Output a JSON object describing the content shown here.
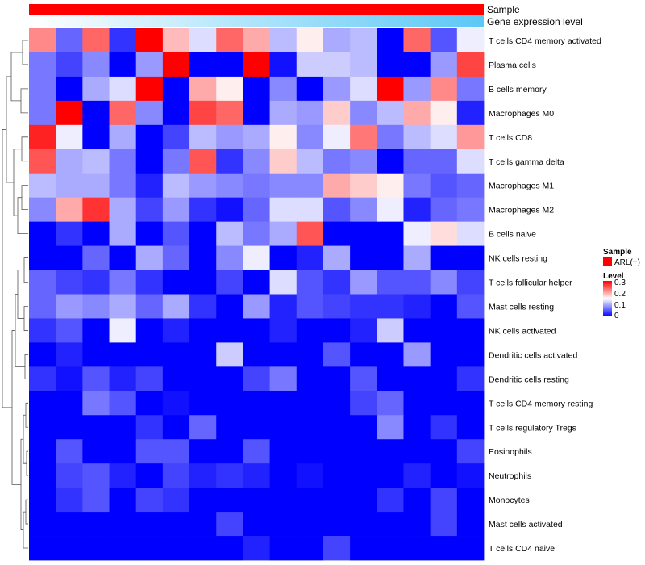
{
  "chart_data": {
    "type": "heatmap",
    "annotation_tracks": [
      {
        "name": "Sample",
        "color": "#ff0000"
      },
      {
        "name": "Gene expression level",
        "gradient": [
          "#ffffff",
          "#5bc8f5"
        ]
      }
    ],
    "rows": [
      "T cells CD4 memory activated",
      "Plasma cells",
      "B cells memory",
      "Macrophages M0",
      "T cells CD8",
      "T cells gamma delta",
      "Macrophages M1",
      "Macrophages M2",
      "B cells naive",
      "NK cells resting",
      "T cells follicular helper",
      "Mast cells resting",
      "NK cells activated",
      "Dendritic cells activated",
      "Dendritic cells resting",
      "T cells CD4 memory resting",
      "T cells regulatory  Tregs",
      "Eosinophils",
      "Neutrophils",
      "Monocytes",
      "Mast cells activated",
      "T cells CD4 naive"
    ],
    "n_columns": 17,
    "values": [
      [
        0.22,
        0.06,
        0.24,
        0.03,
        0.3,
        0.19,
        0.13,
        0.24,
        0.2,
        0.11,
        0.16,
        0.1,
        0.11,
        0.0,
        0.24,
        0.05,
        0.14
      ],
      [
        0.07,
        0.04,
        0.08,
        0.0,
        0.09,
        0.3,
        0.0,
        0.0,
        0.3,
        0.01,
        0.12,
        0.12,
        0.11,
        0.0,
        0.0,
        0.09,
        0.26
      ],
      [
        0.07,
        0.0,
        0.1,
        0.13,
        0.3,
        0.0,
        0.2,
        0.16,
        0.0,
        0.08,
        0.0,
        0.09,
        0.13,
        0.3,
        0.09,
        0.22,
        0.07
      ],
      [
        0.07,
        0.3,
        0.0,
        0.24,
        0.08,
        0.0,
        0.26,
        0.24,
        0.0,
        0.1,
        0.09,
        0.18,
        0.08,
        0.11,
        0.2,
        0.16,
        0.02
      ],
      [
        0.28,
        0.14,
        0.0,
        0.1,
        0.0,
        0.04,
        0.11,
        0.09,
        0.1,
        0.16,
        0.08,
        0.14,
        0.23,
        0.07,
        0.11,
        0.13,
        0.21
      ],
      [
        0.25,
        0.1,
        0.11,
        0.07,
        0.0,
        0.07,
        0.25,
        0.03,
        0.08,
        0.18,
        0.11,
        0.07,
        0.08,
        0.0,
        0.06,
        0.06,
        0.13
      ],
      [
        0.11,
        0.1,
        0.1,
        0.07,
        0.02,
        0.11,
        0.09,
        0.08,
        0.07,
        0.08,
        0.08,
        0.2,
        0.18,
        0.16,
        0.07,
        0.05,
        0.06
      ],
      [
        0.08,
        0.2,
        0.27,
        0.1,
        0.04,
        0.09,
        0.03,
        0.01,
        0.06,
        0.13,
        0.13,
        0.05,
        0.08,
        0.14,
        0.02,
        0.06,
        0.07
      ],
      [
        0.0,
        0.03,
        0.0,
        0.1,
        0.0,
        0.05,
        0.0,
        0.11,
        0.07,
        0.1,
        0.25,
        0.0,
        0.0,
        0.0,
        0.14,
        0.17,
        0.13
      ],
      [
        0.0,
        0.0,
        0.06,
        0.0,
        0.1,
        0.06,
        0.0,
        0.08,
        0.14,
        0.0,
        0.02,
        0.1,
        0.0,
        0.0,
        0.1,
        0.0,
        0.0
      ],
      [
        0.06,
        0.04,
        0.03,
        0.07,
        0.03,
        0.0,
        0.0,
        0.04,
        0.0,
        0.13,
        0.05,
        0.03,
        0.09,
        0.05,
        0.05,
        0.08,
        0.04
      ],
      [
        0.06,
        0.09,
        0.08,
        0.1,
        0.06,
        0.1,
        0.03,
        0.0,
        0.09,
        0.02,
        0.05,
        0.04,
        0.03,
        0.03,
        0.02,
        0.0,
        0.05
      ],
      [
        0.03,
        0.05,
        0.0,
        0.14,
        0.0,
        0.02,
        0.0,
        0.0,
        0.0,
        0.02,
        0.0,
        0.0,
        0.02,
        0.12,
        0.0,
        0.0,
        0.0
      ],
      [
        0.0,
        0.02,
        0.0,
        0.0,
        0.0,
        0.0,
        0.0,
        0.12,
        0.0,
        0.0,
        0.0,
        0.05,
        0.0,
        0.0,
        0.09,
        0.0,
        0.0
      ],
      [
        0.03,
        0.01,
        0.05,
        0.02,
        0.04,
        0.0,
        0.0,
        0.0,
        0.04,
        0.07,
        0.0,
        0.0,
        0.05,
        0.0,
        0.0,
        0.0,
        0.03
      ],
      [
        0.0,
        0.0,
        0.07,
        0.05,
        0.0,
        0.01,
        0.0,
        0.0,
        0.0,
        0.0,
        0.0,
        0.0,
        0.04,
        0.06,
        0.0,
        0.0,
        0.0
      ],
      [
        0.0,
        0.0,
        0.0,
        0.0,
        0.03,
        0.0,
        0.06,
        0.0,
        0.0,
        0.0,
        0.0,
        0.0,
        0.0,
        0.08,
        0.0,
        0.03,
        0.0
      ],
      [
        0.0,
        0.05,
        0.0,
        0.0,
        0.05,
        0.05,
        0.0,
        0.0,
        0.05,
        0.0,
        0.0,
        0.0,
        0.0,
        0.0,
        0.0,
        0.0,
        0.04
      ],
      [
        0.0,
        0.04,
        0.05,
        0.02,
        0.0,
        0.04,
        0.02,
        0.03,
        0.02,
        0.0,
        0.01,
        0.0,
        0.0,
        0.0,
        0.02,
        0.0,
        0.01
      ],
      [
        0.0,
        0.03,
        0.05,
        0.0,
        0.04,
        0.03,
        0.0,
        0.0,
        0.0,
        0.0,
        0.0,
        0.0,
        0.0,
        0.03,
        0.0,
        0.04,
        0.0
      ],
      [
        0.0,
        0.0,
        0.0,
        0.0,
        0.0,
        0.0,
        0.0,
        0.04,
        0.0,
        0.0,
        0.0,
        0.0,
        0.0,
        0.0,
        0.0,
        0.04,
        0.0
      ],
      [
        0.0,
        0.0,
        0.0,
        0.0,
        0.0,
        0.0,
        0.0,
        0.0,
        0.02,
        0.0,
        0.0,
        0.04,
        0.0,
        0.0,
        0.0,
        0.0,
        0.0
      ]
    ],
    "color_scale": {
      "low": "#0000ff",
      "mid": "#ffffff",
      "high": "#ff0000",
      "range": [
        0,
        0.3
      ]
    },
    "legend": {
      "sample_title": "Sample",
      "sample_entry": "ARL(+)",
      "sample_color": "#ff0000",
      "level_title": "Level",
      "ticks": [
        "0.3",
        "0.2",
        "0.1",
        "0"
      ]
    }
  }
}
